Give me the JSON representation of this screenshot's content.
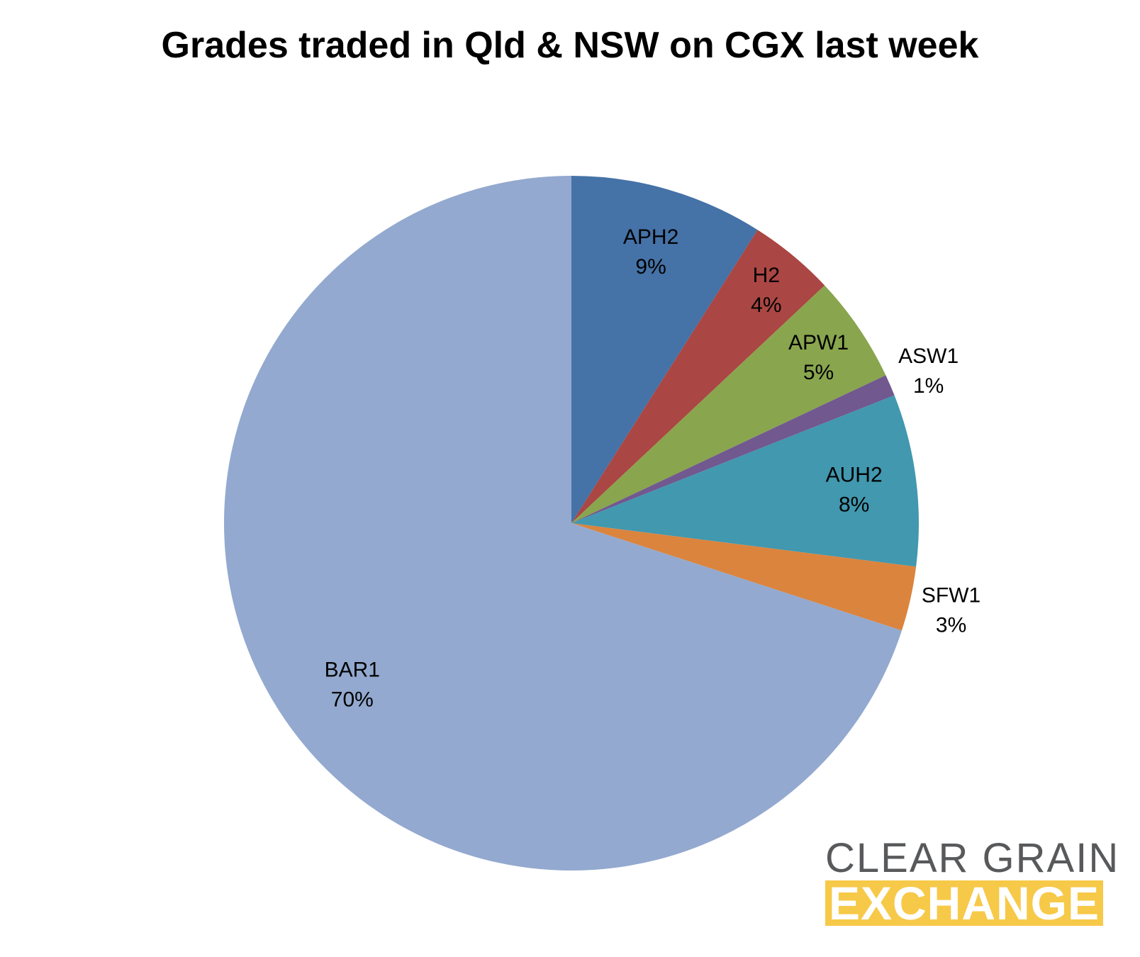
{
  "chart_data": {
    "type": "pie",
    "title": "Grades traded in Qld & NSW on CGX last week",
    "start_angle": "12 o'clock",
    "direction": "clockwise",
    "slices": [
      {
        "label": "APH2",
        "value": 9,
        "pct_label": "9%",
        "color": "#4572a7"
      },
      {
        "label": "H2",
        "value": 4,
        "pct_label": "4%",
        "color": "#aa4643"
      },
      {
        "label": "APW1",
        "value": 5,
        "pct_label": "5%",
        "color": "#89a54e"
      },
      {
        "label": "ASW1",
        "value": 1,
        "pct_label": "1%",
        "color": "#71588f"
      },
      {
        "label": "AUH2",
        "value": 8,
        "pct_label": "8%",
        "color": "#4198af"
      },
      {
        "label": "SFW1",
        "value": 3,
        "pct_label": "3%",
        "color": "#db843d"
      },
      {
        "label": "BAR1",
        "value": 70,
        "pct_label": "70%",
        "color": "#93a9cf"
      }
    ]
  },
  "logo": {
    "line1": "CLEAR GRAIN",
    "line2": "EXCHANGE",
    "text_color": "#58595b",
    "band_color": "#f7c948"
  }
}
